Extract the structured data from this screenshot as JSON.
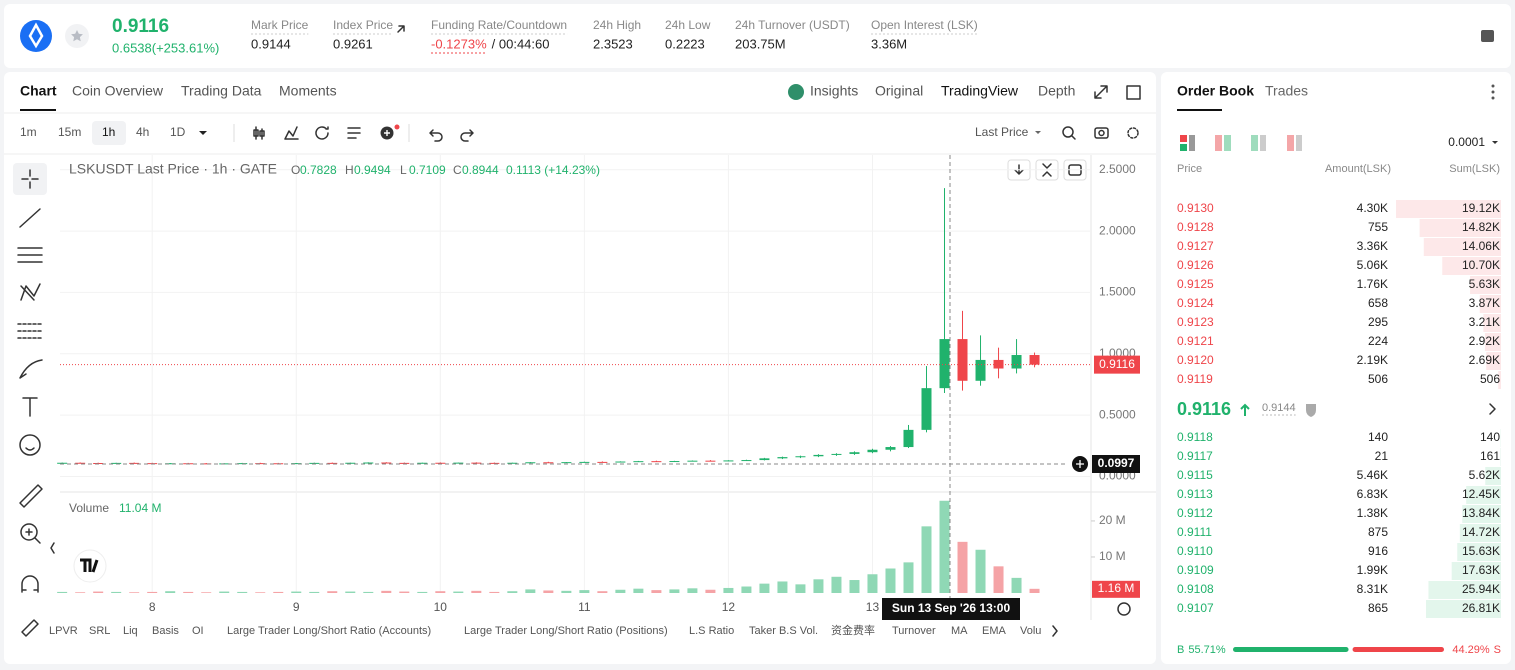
{
  "header": {
    "price": "0.9116",
    "change": "0.6538(+253.61%)",
    "stats": [
      {
        "label": "Mark Price",
        "value": "0.9144"
      },
      {
        "label": "Index Price",
        "value": "0.9261"
      },
      {
        "label": "Funding Rate/Countdown",
        "value": "-0.1273%",
        "extra": "/ 00:44:60"
      },
      {
        "label": "24h High",
        "value": "2.3523"
      },
      {
        "label": "24h Low",
        "value": "0.2223"
      },
      {
        "label": "24h Turnover (USDT)",
        "value": "203.75M"
      },
      {
        "label": "Open Interest (LSK)",
        "value": "3.36M"
      }
    ]
  },
  "tabs": [
    "Chart",
    "Coin Overview",
    "Trading Data",
    "Moments"
  ],
  "views": [
    "Insights",
    "Original",
    "TradingView",
    "Depth"
  ],
  "intervals": [
    "1m",
    "15m",
    "1h",
    "4h",
    "1D"
  ],
  "price_type": "Last Price",
  "legend": {
    "title": "LSKUSDT Last Price · 1h · GATE",
    "ohlc": [
      {
        "k": "O",
        "v": "0.7828"
      },
      {
        "k": "H",
        "v": "0.9494"
      },
      {
        "k": "L",
        "v": "0.7109"
      },
      {
        "k": "C",
        "v": "0.8944"
      }
    ],
    "change": "0.1113 (+14.23%)",
    "volume_title": "Volume",
    "volume_value": "11.04 M"
  },
  "chart": {
    "ylim": [
      -0.11,
      2.62
    ],
    "yticks": [
      {
        "value": 2.5,
        "label": "2.5000"
      },
      {
        "value": 2,
        "label": "2.0000"
      },
      {
        "value": 1.5,
        "label": "1.5000"
      },
      {
        "value": 1,
        "label": "1.0000"
      },
      {
        "value": 0.5,
        "label": "0.5000"
      },
      {
        "value": 0,
        "label": "0.0000"
      }
    ],
    "xlim": [
      7.36,
      14.51
    ],
    "xticks": [
      8,
      9,
      10,
      11,
      12,
      13
    ],
    "price_marker": "0.9116",
    "crosshair_price": "0.0997",
    "crosshair_time": "Sun 13 Sep '26   13:00",
    "x": [
      7.375,
      7.5,
      7.625,
      7.75,
      7.875,
      8,
      8.125,
      8.25,
      8.375,
      8.5,
      8.625,
      8.75,
      8.875,
      9,
      9.125,
      9.25,
      9.375,
      9.5,
      9.625,
      9.75,
      9.875,
      10,
      10.125,
      10.25,
      10.375,
      10.5,
      10.625,
      10.75,
      10.875,
      11,
      11.125,
      11.25,
      11.375,
      11.5,
      11.625,
      11.75,
      11.875,
      12,
      12.125,
      12.25,
      12.375,
      12.5,
      12.625,
      12.75,
      12.875,
      13,
      13.125,
      13.25,
      13.375,
      13.5,
      13.625,
      13.75,
      13.875,
      14,
      14.125
    ],
    "ohlc": [
      [
        0.11,
        0.114,
        0.107,
        0.112
      ],
      [
        0.112,
        0.115,
        0.109,
        0.11
      ],
      [
        0.11,
        0.113,
        0.106,
        0.108
      ],
      [
        0.108,
        0.112,
        0.105,
        0.111
      ],
      [
        0.111,
        0.114,
        0.108,
        0.109
      ],
      [
        0.109,
        0.112,
        0.104,
        0.106
      ],
      [
        0.106,
        0.11,
        0.103,
        0.108
      ],
      [
        0.108,
        0.111,
        0.105,
        0.107
      ],
      [
        0.107,
        0.11,
        0.103,
        0.105
      ],
      [
        0.105,
        0.109,
        0.102,
        0.107
      ],
      [
        0.107,
        0.111,
        0.104,
        0.109
      ],
      [
        0.109,
        0.112,
        0.106,
        0.108
      ],
      [
        0.108,
        0.111,
        0.104,
        0.106
      ],
      [
        0.106,
        0.11,
        0.103,
        0.109
      ],
      [
        0.109,
        0.113,
        0.106,
        0.111
      ],
      [
        0.111,
        0.114,
        0.108,
        0.11
      ],
      [
        0.11,
        0.113,
        0.106,
        0.112
      ],
      [
        0.112,
        0.116,
        0.109,
        0.114
      ],
      [
        0.114,
        0.117,
        0.11,
        0.111
      ],
      [
        0.111,
        0.114,
        0.107,
        0.109
      ],
      [
        0.109,
        0.113,
        0.105,
        0.112
      ],
      [
        0.112,
        0.115,
        0.108,
        0.11
      ],
      [
        0.11,
        0.114,
        0.107,
        0.113
      ],
      [
        0.113,
        0.116,
        0.109,
        0.111
      ],
      [
        0.111,
        0.114,
        0.107,
        0.109
      ],
      [
        0.109,
        0.113,
        0.106,
        0.112
      ],
      [
        0.112,
        0.118,
        0.109,
        0.116
      ],
      [
        0.116,
        0.12,
        0.112,
        0.114
      ],
      [
        0.114,
        0.118,
        0.111,
        0.117
      ],
      [
        0.117,
        0.121,
        0.113,
        0.119
      ],
      [
        0.119,
        0.123,
        0.115,
        0.118
      ],
      [
        0.118,
        0.124,
        0.115,
        0.122
      ],
      [
        0.122,
        0.127,
        0.118,
        0.125
      ],
      [
        0.125,
        0.129,
        0.12,
        0.123
      ],
      [
        0.123,
        0.128,
        0.119,
        0.126
      ],
      [
        0.126,
        0.131,
        0.122,
        0.129
      ],
      [
        0.129,
        0.134,
        0.125,
        0.128
      ],
      [
        0.128,
        0.133,
        0.124,
        0.131
      ],
      [
        0.131,
        0.137,
        0.127,
        0.134
      ],
      [
        0.134,
        0.152,
        0.131,
        0.148
      ],
      [
        0.148,
        0.162,
        0.142,
        0.158
      ],
      [
        0.158,
        0.17,
        0.15,
        0.165
      ],
      [
        0.165,
        0.182,
        0.158,
        0.176
      ],
      [
        0.176,
        0.19,
        0.168,
        0.184
      ],
      [
        0.184,
        0.205,
        0.176,
        0.198
      ],
      [
        0.198,
        0.226,
        0.19,
        0.218
      ],
      [
        0.218,
        0.248,
        0.205,
        0.24
      ],
      [
        0.24,
        0.42,
        0.232,
        0.38
      ],
      [
        0.38,
        0.9,
        0.36,
        0.72
      ],
      [
        0.72,
        2.35,
        0.68,
        1.12
      ],
      [
        1.12,
        1.35,
        0.7,
        0.78
      ],
      [
        0.78,
        1.15,
        0.74,
        0.95
      ],
      [
        0.95,
        1.05,
        0.8,
        0.88
      ],
      [
        0.88,
        1.12,
        0.84,
        0.99
      ],
      [
        0.99,
        1.01,
        0.89,
        0.9116
      ]
    ],
    "vlim": [
      0,
      27.2
    ],
    "vticks": [
      {
        "value": 20,
        "label": "20 M"
      },
      {
        "value": 10,
        "label": "10 M"
      }
    ],
    "volume": [
      0.3,
      0.2,
      0.4,
      0.3,
      0.2,
      0.3,
      0.5,
      0.3,
      0.2,
      0.4,
      0.3,
      0.2,
      0.3,
      0.4,
      0.3,
      0.5,
      0.4,
      0.3,
      0.6,
      0.4,
      0.3,
      0.5,
      0.4,
      0.6,
      0.3,
      0.5,
      1.0,
      0.7,
      0.6,
      0.8,
      0.5,
      0.9,
      1.2,
      0.8,
      1.0,
      1.3,
      0.9,
      1.4,
      1.8,
      2.6,
      3.2,
      2.4,
      3.8,
      4.5,
      3.6,
      5.2,
      6.8,
      8.5,
      18.5,
      25.6,
      14.2,
      12.0,
      7.4,
      4.2,
      1.16
    ],
    "volume_marker": "1.16 M"
  },
  "indicators": [
    "LPVR",
    "SRL",
    "Liq",
    "Basis",
    "OI",
    "Large Trader Long/Short Ratio (Accounts)",
    "Large Trader Long/Short Ratio (Positions)",
    "L.S Ratio",
    "Taker B.S Vol.",
    "资金费率",
    "Turnover",
    "MA",
    "EMA",
    "Volu"
  ],
  "order_book": {
    "tabs": [
      "Order Book",
      "Trades"
    ],
    "precision": "0.0001",
    "columns": [
      "Price",
      "Amount(LSK)",
      "Sum(LSK)"
    ],
    "asks": [
      [
        "0.9130",
        "4.30K",
        "19.12K"
      ],
      [
        "0.9128",
        "755",
        "14.82K"
      ],
      [
        "0.9127",
        "3.36K",
        "14.06K"
      ],
      [
        "0.9126",
        "5.06K",
        "10.70K"
      ],
      [
        "0.9125",
        "1.76K",
        "5.63K"
      ],
      [
        "0.9124",
        "658",
        "3.87K"
      ],
      [
        "0.9123",
        "295",
        "3.21K"
      ],
      [
        "0.9121",
        "224",
        "2.92K"
      ],
      [
        "0.9120",
        "2.19K",
        "2.69K"
      ],
      [
        "0.9119",
        "506",
        "506"
      ]
    ],
    "last_price": "0.9116",
    "mark_price": "0.9144",
    "bids": [
      [
        "0.9118",
        "140",
        "140"
      ],
      [
        "0.9117",
        "21",
        "161"
      ],
      [
        "0.9115",
        "5.46K",
        "5.62K"
      ],
      [
        "0.9113",
        "6.83K",
        "12.45K"
      ],
      [
        "0.9112",
        "1.38K",
        "13.84K"
      ],
      [
        "0.9111",
        "875",
        "14.72K"
      ],
      [
        "0.9110",
        "916",
        "15.63K"
      ],
      [
        "0.9109",
        "1.99K",
        "17.63K"
      ],
      [
        "0.9108",
        "8.31K",
        "25.94K"
      ],
      [
        "0.9107",
        "865",
        "26.81K"
      ]
    ],
    "buy_label": "B",
    "buy": "55.71%",
    "sell": "44.29%",
    "sell_label": "S"
  }
}
